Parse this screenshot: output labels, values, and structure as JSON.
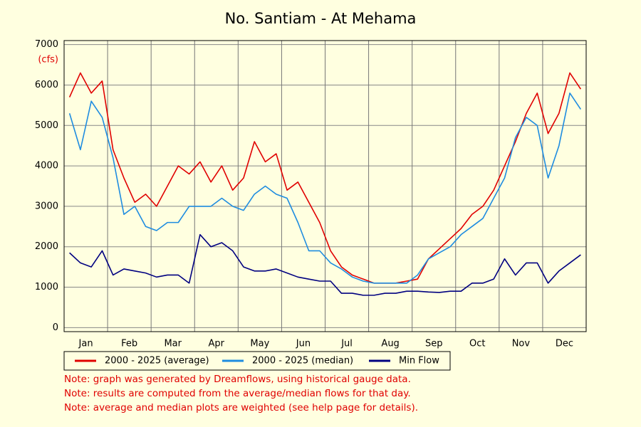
{
  "chart_data": {
    "type": "line",
    "title": "No. Santiam - At Mehama",
    "y_label": "(cfs)",
    "categories": [
      "Jan",
      "Feb",
      "Mar",
      "Apr",
      "May",
      "Jun",
      "Jul",
      "Aug",
      "Sep",
      "Oct",
      "Nov",
      "Dec"
    ],
    "ylim": [
      -100,
      7100
    ],
    "yticks": [
      0,
      1000,
      2000,
      3000,
      4000,
      5000,
      6000,
      7000
    ],
    "grid": true,
    "legend": "bottom",
    "series": [
      {
        "name": "2000 - 2025 (average)",
        "color": "#e00000",
        "values": [
          [
            5700,
            6300,
            5800,
            6100
          ],
          [
            4400,
            3700,
            3100,
            3300
          ],
          [
            3000,
            3500,
            4000,
            3800
          ],
          [
            4100,
            3600,
            4000,
            3400
          ],
          [
            3700,
            4600,
            4100,
            4300
          ],
          [
            3400,
            3600,
            3100,
            2600
          ],
          [
            1900,
            1500,
            1300,
            1200
          ],
          [
            1100,
            1100,
            1100,
            1150
          ],
          [
            1200,
            1700,
            1950,
            2200
          ],
          [
            2450,
            2800,
            3000,
            3400
          ],
          [
            4000,
            4600,
            5300,
            5800
          ],
          [
            4800,
            5300,
            6300,
            5900
          ]
        ]
      },
      {
        "name": "2000 - 2025 (median)",
        "color": "#1e8ce0",
        "values": [
          [
            5300,
            4400,
            5600,
            5200
          ],
          [
            4200,
            2800,
            3000,
            2500
          ],
          [
            2400,
            2600,
            2600,
            3000
          ],
          [
            3000,
            3000,
            3200,
            3000
          ],
          [
            2900,
            3300,
            3500,
            3300
          ],
          [
            3200,
            2600,
            1900,
            1900
          ],
          [
            1600,
            1450,
            1250,
            1150
          ],
          [
            1100,
            1100,
            1100,
            1100
          ],
          [
            1300,
            1700,
            1850,
            2000
          ],
          [
            2300,
            2500,
            2700,
            3200
          ],
          [
            3700,
            4700,
            5200,
            5000
          ],
          [
            3700,
            4500,
            5800,
            5400
          ]
        ]
      },
      {
        "name": "Min Flow",
        "color": "#000080",
        "values": [
          [
            1850,
            1600,
            1500,
            1900
          ],
          [
            1300,
            1450,
            1400,
            1350
          ],
          [
            1250,
            1300,
            1300,
            1100
          ],
          [
            2300,
            2000,
            2100,
            1900
          ],
          [
            1500,
            1400,
            1400,
            1450
          ],
          [
            1350,
            1250,
            1200,
            1150
          ],
          [
            1150,
            850,
            850,
            800
          ],
          [
            800,
            850,
            850,
            900
          ],
          [
            900,
            880,
            870,
            900
          ],
          [
            900,
            1100,
            1100,
            1200
          ],
          [
            1700,
            1300,
            1600,
            1600
          ],
          [
            1100,
            1400,
            1600,
            1800
          ]
        ]
      }
    ],
    "notes": [
      "Note: graph was generated by Dreamflows, using historical gauge data.",
      "Note: results are computed from the average/median flows for that day.",
      "Note: average and median plots are weighted (see help page for details)."
    ]
  }
}
